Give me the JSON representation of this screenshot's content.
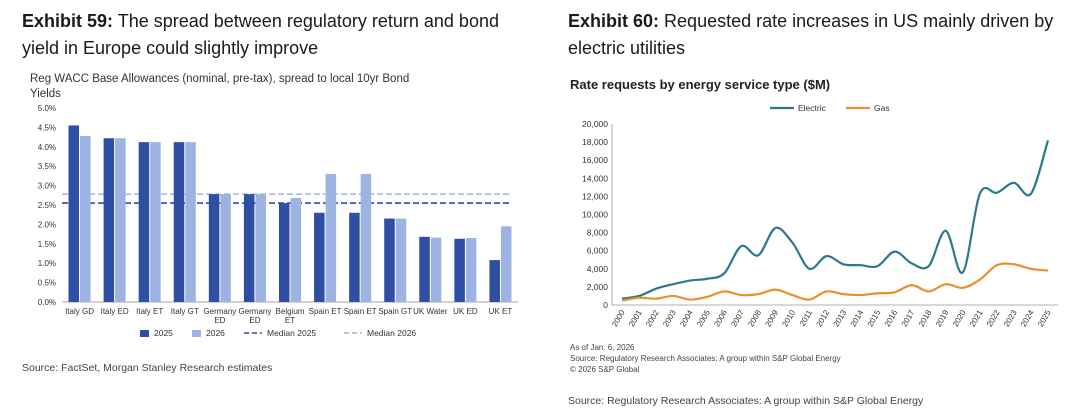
{
  "exhibit59": {
    "label": "Exhibit 59:",
    "title": "The spread between regulatory return and bond yield in Europe could slightly improve",
    "source": "Source: FactSet, Morgan Stanley Research estimates",
    "chart_data": {
      "type": "bar",
      "title": "Reg WACC Base Allowances (nominal, pre-tax), spread to local 10yr Bond Yields",
      "categories": [
        "Italy GD",
        "Italy ED",
        "Italy ET",
        "Italy GT",
        "Germany ED",
        "Germany ED",
        "Belgium ET",
        "Spain ET",
        "Spain ET",
        "Spain GT",
        "UK Water",
        "UK ED",
        "UK ET"
      ],
      "series": [
        {
          "name": "2025",
          "color": "#2e4fa3",
          "values": [
            4.55,
            4.22,
            4.12,
            4.12,
            2.78,
            2.78,
            2.55,
            2.3,
            2.3,
            2.15,
            1.68,
            1.63,
            1.08
          ]
        },
        {
          "name": "2026",
          "color": "#9db4e3",
          "values": [
            4.28,
            4.22,
            4.12,
            4.12,
            2.78,
            2.78,
            2.68,
            3.3,
            3.3,
            2.15,
            1.66,
            1.65,
            1.95
          ]
        }
      ],
      "reference_lines": [
        {
          "name": "Median 2025",
          "value": 2.55,
          "color": "#2e4fa3",
          "style": "dashed"
        },
        {
          "name": "Median 2026",
          "value": 2.78,
          "color": "#9db4e3",
          "style": "dashed"
        }
      ],
      "ylim": [
        0,
        5
      ],
      "yticks": [
        "0.0%",
        "0.5%",
        "1.0%",
        "1.5%",
        "2.0%",
        "2.5%",
        "3.0%",
        "3.5%",
        "4.0%",
        "4.5%",
        "5.0%"
      ],
      "legend": "bottom",
      "grid": false
    }
  },
  "exhibit60": {
    "label": "Exhibit 60:",
    "title": "Requested rate increases in US mainly driven by electric utilities",
    "note_lines": [
      "As of Jan. 6, 2026",
      "Source: Regulatory Research Associates: A group within S&P Global Energy",
      "© 2026 S&P Global"
    ],
    "source": "Source: Regulatory Research Associates: A group within S&P Global Energy",
    "chart_data": {
      "type": "line",
      "title": "Rate requests by energy service type ($M)",
      "x": [
        "2000",
        "2001",
        "2002",
        "2003",
        "2004",
        "2005",
        "2006",
        "2007",
        "2008",
        "2009",
        "2010",
        "2011",
        "2012",
        "2013",
        "2014",
        "2015",
        "2016",
        "2017",
        "2018",
        "2019",
        "2020",
        "2021",
        "2022",
        "2023",
        "2024",
        "2025"
      ],
      "series": [
        {
          "name": "Electric",
          "color": "#2a7a8c",
          "values": [
            700,
            1000,
            1800,
            2300,
            2700,
            2900,
            3500,
            6500,
            5500,
            8500,
            6900,
            4000,
            5400,
            4500,
            4400,
            4300,
            5900,
            4600,
            4300,
            8200,
            3600,
            12300,
            12400,
            13500,
            12300,
            18200
          ]
        },
        {
          "name": "Gas",
          "color": "#e8902c",
          "values": [
            500,
            800,
            700,
            1000,
            600,
            900,
            1500,
            1100,
            1200,
            1700,
            1100,
            600,
            1500,
            1200,
            1100,
            1300,
            1400,
            2200,
            1500,
            2300,
            1900,
            2800,
            4400,
            4500,
            4000,
            3800
          ]
        }
      ],
      "ylim": [
        0,
        20000
      ],
      "yticks": [
        "0",
        "2,000",
        "4,000",
        "6,000",
        "8,000",
        "10,000",
        "12,000",
        "14,000",
        "16,000",
        "18,000",
        "20,000"
      ],
      "legend": "top",
      "grid": false
    }
  }
}
